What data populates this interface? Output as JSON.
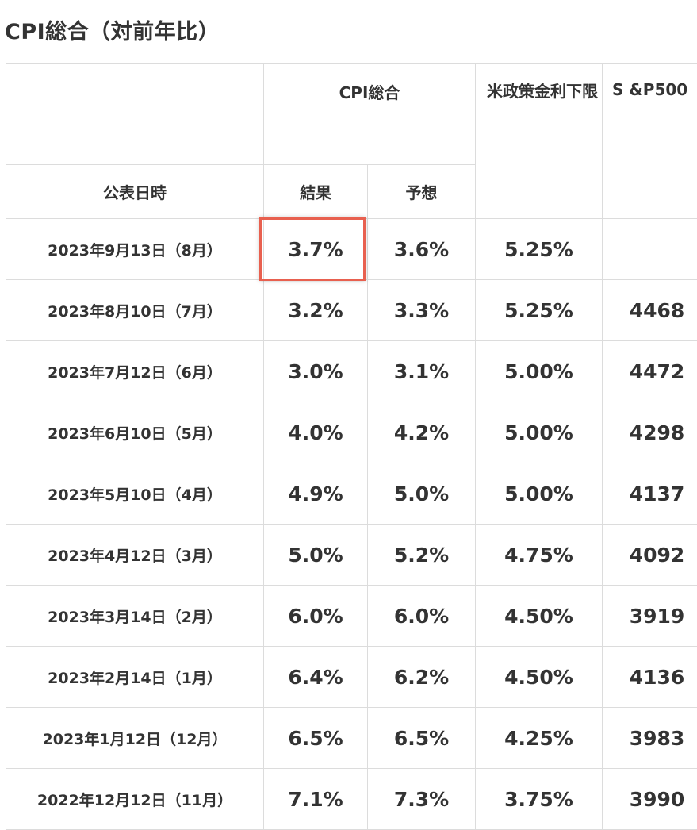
{
  "page_title": "CPI総合（対前年比）",
  "headers": {
    "cpi_total": "CPI総合",
    "policy_rate": "米政策金利下限",
    "sp500": "S &P500",
    "date": "公表日時",
    "result": "結果",
    "forecast": "予想"
  },
  "highlight_color": "#e8604f",
  "rows": [
    {
      "date": "2023年9月13日（8月）",
      "result": "3.7%",
      "forecast": "3.6%",
      "rate": "5.25%",
      "sp500": "",
      "highlighted": true
    },
    {
      "date": "2023年8月10日（7月）",
      "result": "3.2%",
      "forecast": "3.3%",
      "rate": "5.25%",
      "sp500": "4468"
    },
    {
      "date": "2023年7月12日（6月）",
      "result": "3.0%",
      "forecast": "3.1%",
      "rate": "5.00%",
      "sp500": "4472"
    },
    {
      "date": "2023年6月10日（5月）",
      "result": "4.0%",
      "forecast": "4.2%",
      "rate": "5.00%",
      "sp500": "4298"
    },
    {
      "date": "2023年5月10日（4月）",
      "result": "4.9%",
      "forecast": "5.0%",
      "rate": "5.00%",
      "sp500": "4137"
    },
    {
      "date": "2023年4月12日（3月）",
      "result": "5.0%",
      "forecast": "5.2%",
      "rate": "4.75%",
      "sp500": "4092"
    },
    {
      "date": "2023年3月14日（2月）",
      "result": "6.0%",
      "forecast": "6.0%",
      "rate": "4.50%",
      "sp500": "3919"
    },
    {
      "date": "2023年2月14日（1月）",
      "result": "6.4%",
      "forecast": "6.2%",
      "rate": "4.50%",
      "sp500": "4136"
    },
    {
      "date": "2023年1月12日（12月）",
      "result": "6.5%",
      "forecast": "6.5%",
      "rate": "4.25%",
      "sp500": "3983"
    },
    {
      "date": "2022年12月12日（11月）",
      "result": "7.1%",
      "forecast": "7.3%",
      "rate": "3.75%",
      "sp500": "3990"
    }
  ]
}
